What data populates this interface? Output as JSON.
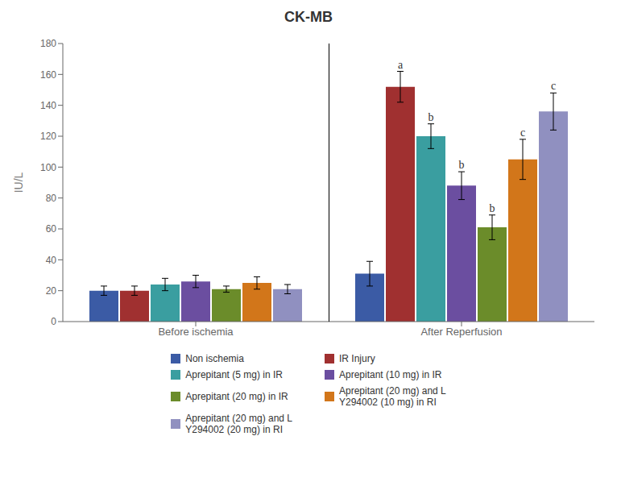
{
  "chart_data": {
    "type": "bar",
    "title": "CK-MB",
    "ylabel": "IU/L",
    "categories": [
      "Before ischemia",
      "After Reperfusion"
    ],
    "series": [
      {
        "name": "Non ischemia",
        "color": "#3B5BA5",
        "values": [
          20,
          31
        ],
        "errors": [
          3,
          8
        ]
      },
      {
        "name": "IR Injury",
        "color": "#A03030",
        "values": [
          20,
          152
        ],
        "errors": [
          3,
          10
        ]
      },
      {
        "name": "Aprepitant (5 mg) in IR",
        "color": "#3A9EA0",
        "values": [
          24,
          120
        ],
        "errors": [
          4,
          8
        ]
      },
      {
        "name": "Aprepitant (10 mg) in IR",
        "color": "#6B4EA0",
        "values": [
          26,
          88
        ],
        "errors": [
          4,
          9
        ]
      },
      {
        "name": "Aprepitant (20 mg) in IR",
        "color": "#6B8C2A",
        "values": [
          21,
          61
        ],
        "errors": [
          2,
          8
        ]
      },
      {
        "name": "Aprepitant (20 mg) and L\nY294002 (10 mg) in RI",
        "color": "#D2761A",
        "values": [
          25,
          105
        ],
        "errors": [
          4,
          13
        ]
      },
      {
        "name": "Aprepitant (20 mg) and L\nY294002 (20 mg) in RI",
        "color": "#9090C0",
        "values": [
          21,
          136
        ],
        "errors": [
          3,
          12
        ]
      }
    ],
    "annotations": [
      {
        "series": 1,
        "category": 1,
        "text": "a"
      },
      {
        "series": 2,
        "category": 1,
        "text": "b"
      },
      {
        "series": 3,
        "category": 1,
        "text": "b"
      },
      {
        "series": 4,
        "category": 1,
        "text": "b"
      },
      {
        "series": 5,
        "category": 1,
        "text": "c"
      },
      {
        "series": 6,
        "category": 1,
        "text": "c"
      }
    ],
    "ylim": [
      0,
      180
    ],
    "yticks": [
      0,
      20,
      40,
      60,
      80,
      100,
      120,
      140,
      160,
      180
    ],
    "grid": false,
    "legend": "bottom"
  }
}
